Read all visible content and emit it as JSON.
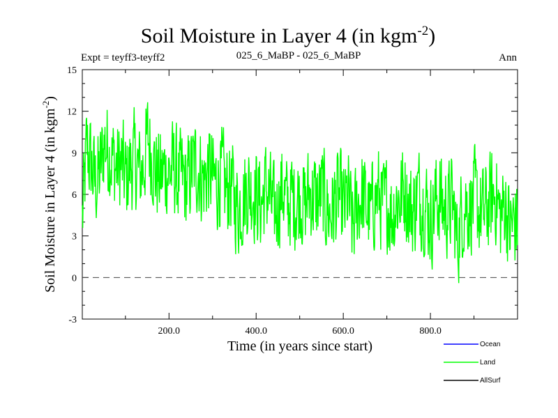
{
  "chart_data": {
    "type": "line",
    "title": "Soil Moisture in Layer 4 (in kgm",
    "title_sup": "-2",
    "title_end": ")",
    "subtitle_left": "Expt = teyff3-teyff2",
    "subtitle_center": "025_6_MaBP - 025_6_MaBP",
    "subtitle_right": "Ann",
    "xlabel": "Time (in years since start)",
    "ylabel": "Soil Moisture in Layer 4 (in kgm",
    "ylabel_sup": "-2",
    "ylabel_end": ")",
    "xlim": [
      1,
      1000
    ],
    "ylim": [
      -3,
      15
    ],
    "yticks": [
      -3,
      0,
      3,
      6,
      9,
      12,
      15
    ],
    "ytick_labels": [
      "-3",
      "0",
      "3",
      "6",
      "9",
      "12",
      "15"
    ],
    "xticks": [
      200,
      400,
      600,
      800
    ],
    "xtick_labels": [
      "200.0",
      "400.0",
      "600.0",
      "800.0"
    ],
    "zero_line": 0,
    "legend": [
      {
        "name": "Ocean",
        "color": "#0000ff"
      },
      {
        "name": "Land",
        "color": "#00ff00"
      },
      {
        "name": "AllSurf",
        "color": "#000000"
      }
    ],
    "series": [
      {
        "name": "Land",
        "color": "#00ff00",
        "x_start": 1,
        "x_step": 10,
        "values": [
          4.2,
          9.5,
          8.0,
          6.8,
          7.5,
          9.8,
          9.2,
          8.5,
          7.8,
          8.2,
          7.0,
          8.0,
          8.5,
          7.5,
          8.0,
          10.2,
          8.8,
          7.5,
          7.2,
          7.8,
          7.5,
          8.0,
          7.0,
          7.2,
          6.5,
          7.8,
          8.2,
          7.5,
          7.0,
          8.0,
          7.0,
          6.8,
          7.5,
          6.2,
          6.8,
          5.5,
          5.0,
          5.8,
          6.5,
          6.2,
          6.0,
          5.2,
          6.5,
          5.8,
          4.5,
          5.5,
          6.5,
          5.0,
          5.8,
          5.5,
          6.0,
          5.0,
          6.2,
          5.8,
          5.5,
          6.2,
          5.0,
          4.5,
          5.5,
          5.8,
          4.8,
          5.8,
          3.5,
          5.0,
          6.0,
          5.2,
          4.5,
          5.5,
          6.0,
          5.0,
          5.5,
          4.5,
          5.5,
          5.8,
          6.5,
          5.0,
          4.8,
          6.2,
          5.5,
          5.2,
          4.0,
          5.5,
          5.8,
          4.8,
          5.0,
          5.5,
          2.5,
          4.5,
          5.5,
          5.0,
          5.8,
          4.8,
          4.5,
          5.0,
          5.8,
          6.0,
          4.2,
          5.5,
          3.5,
          4.0
        ]
      }
    ]
  }
}
